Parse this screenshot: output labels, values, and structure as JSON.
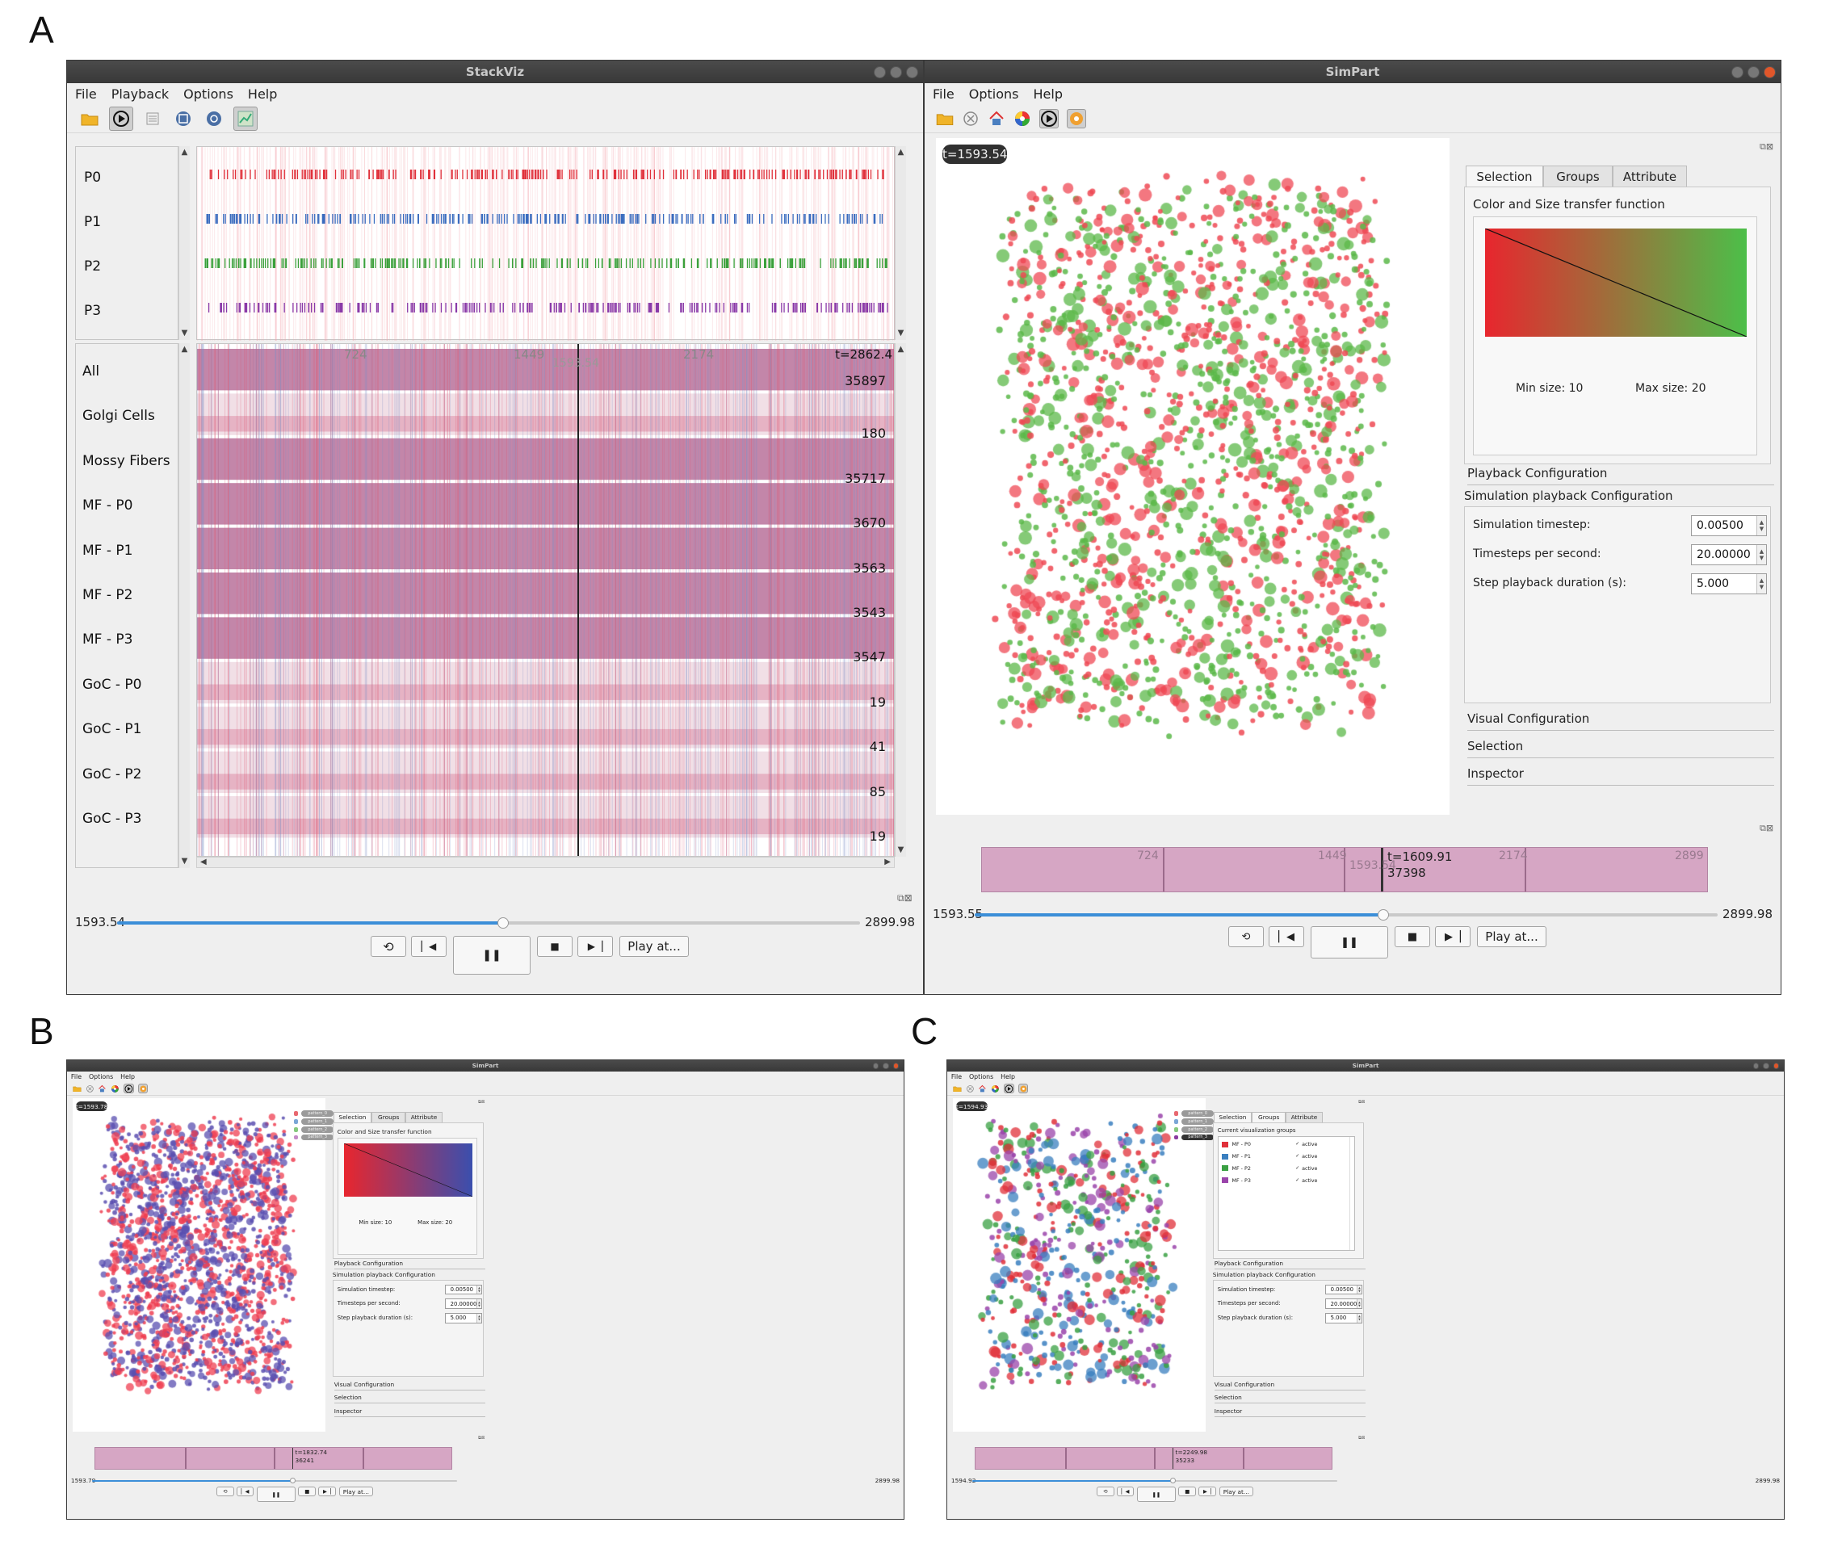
{
  "panels": {
    "A": "A",
    "B": "B",
    "C": "C"
  },
  "stackviz": {
    "title": "StackViz",
    "menu": [
      "File",
      "Playback",
      "Options",
      "Help"
    ],
    "toolbar_icons": [
      "open-folder-icon",
      "play-icon",
      "list-icon",
      "zoom-fit-icon",
      "zoom-reset-icon",
      "chart-icon"
    ],
    "raster_rows": [
      {
        "label": "P0",
        "color": "#e0303a"
      },
      {
        "label": "P1",
        "color": "#3a6cbf"
      },
      {
        "label": "P2",
        "color": "#3aa03a"
      },
      {
        "label": "P3",
        "color": "#8a3aa8"
      }
    ],
    "stack_rows": [
      {
        "label": "All",
        "count": "35897"
      },
      {
        "label": "Golgi Cells",
        "count": "180"
      },
      {
        "label": "Mossy Fibers",
        "count": "35717"
      },
      {
        "label": "MF - P0",
        "count": "3670"
      },
      {
        "label": "MF - P1",
        "count": "3563"
      },
      {
        "label": "MF - P2",
        "count": "3543"
      },
      {
        "label": "MF - P3",
        "count": "3547"
      },
      {
        "label": "GoC - P0",
        "count": "19"
      },
      {
        "label": "GoC - P1",
        "count": "41"
      },
      {
        "label": "GoC - P2",
        "count": "85"
      },
      {
        "label": "GoC - P3",
        "count": "19"
      }
    ],
    "stack_header": {
      "t": "t=2862.4",
      "ticks": [
        "724",
        "1449",
        "1593.54",
        "2174"
      ]
    },
    "slider": {
      "min_label": "1593.54",
      "max_label": "2899.98",
      "fraction": 0.52
    },
    "buttons": {
      "restart": "restart-icon",
      "prev": "step-back-icon",
      "pause": "pause-icon",
      "stop": "stop-icon",
      "next": "step-forward-icon",
      "play_at": "Play at..."
    }
  },
  "simpartA": {
    "title": "SimPart",
    "menu": [
      "File",
      "Options",
      "Help"
    ],
    "time": "t=1593.54",
    "tabs": [
      "Selection",
      "Groups",
      "Attribute"
    ],
    "transfer_title": "Color and Size transfer function",
    "min_size": "Min size: 10",
    "max_size": "Max size: 20",
    "gradient": [
      "#e8262e",
      "#4cbf49"
    ],
    "playback_config": "Playback Configuration",
    "sim_playback_config": "Simulation playback Configuration",
    "fields": [
      {
        "label": "Simulation timestep:",
        "value": "0.00500"
      },
      {
        "label": "Timesteps per second:",
        "value": "20.00000"
      },
      {
        "label": "Step playback duration (s):",
        "value": "5.000"
      }
    ],
    "sections": [
      "Visual Configuration",
      "Selection",
      "Inspector"
    ],
    "timeline": {
      "ticks": [
        "724",
        "1449",
        "1593.54",
        "2174",
        "2899"
      ],
      "t": "t=1609.91",
      "count": "37398"
    },
    "slider": {
      "min_label": "1593.55",
      "max_label": "2899.98",
      "fraction": 0.55
    },
    "play_at": "Play at...",
    "particle_colors": [
      "#ef4a55",
      "#5cb84a"
    ]
  },
  "simpartB": {
    "title": "SimPart",
    "menu": [
      "File",
      "Options",
      "Help"
    ],
    "time": "t=1593.78",
    "tabs": [
      "Selection",
      "Groups",
      "Attribute"
    ],
    "transfer_title": "Color and Size transfer function",
    "min_size": "Min size: 10",
    "max_size": "Max size: 20",
    "gradient": [
      "#e8262e",
      "#3a4fae"
    ],
    "legend": [
      {
        "label": "pattern_0",
        "color": "#e86870"
      },
      {
        "label": "pattern_1",
        "color": "#7aa6d6"
      },
      {
        "label": "pattern_2",
        "color": "#86c97e"
      },
      {
        "label": "pattern_3",
        "color": "#c48ac8"
      }
    ],
    "playback_config": "Playback Configuration",
    "sim_playback_config": "Simulation playback Configuration",
    "fields": [
      {
        "label": "Simulation timestep:",
        "value": "0.00500"
      },
      {
        "label": "Timesteps per second:",
        "value": "20.00000"
      },
      {
        "label": "Step playback duration (s):",
        "value": "5.000"
      }
    ],
    "sections": [
      "Visual Configuration",
      "Selection",
      "Inspector"
    ],
    "timeline": {
      "t": "t=1832.74",
      "count": "36241"
    },
    "slider": {
      "min_label": "1593.79",
      "max_label": "2899.98",
      "fraction": 0.55
    },
    "play_at": "Play at...",
    "particle_colors": [
      "#ef3f52",
      "#5a4fb0"
    ]
  },
  "simpartC": {
    "title": "SimPart",
    "menu": [
      "File",
      "Options",
      "Help"
    ],
    "time": "t=1594.93",
    "tabs": [
      "Selection",
      "Groups",
      "Attribute"
    ],
    "groups_title": "Current visualization groups",
    "groups": [
      {
        "label": "MF - P0",
        "color": "#e0303a",
        "state": "active"
      },
      {
        "label": "MF - P1",
        "color": "#3a7fbf",
        "state": "active"
      },
      {
        "label": "MF - P2",
        "color": "#3aa043",
        "state": "active"
      },
      {
        "label": "MF - P3",
        "color": "#9a44aa",
        "state": "active"
      }
    ],
    "legend": [
      {
        "label": "pattern_0",
        "color": "#e86870"
      },
      {
        "label": "pattern_1",
        "color": "#7aa6d6"
      },
      {
        "label": "pattern_2",
        "color": "#86c97e"
      },
      {
        "label": "pattern_3",
        "color": "#8a3aa0"
      }
    ],
    "playback_config": "Playback Configuration",
    "sim_playback_config": "Simulation playback Configuration",
    "fields": [
      {
        "label": "Simulation timestep:",
        "value": "0.00500"
      },
      {
        "label": "Timesteps per second:",
        "value": "20.00000"
      },
      {
        "label": "Step playback duration (s):",
        "value": "5.000"
      }
    ],
    "sections": [
      "Visual Configuration",
      "Selection",
      "Inspector"
    ],
    "timeline": {
      "t": "t=2249.98",
      "count": "35233"
    },
    "slider": {
      "min_label": "1594.92",
      "max_label": "2899.98",
      "fraction": 0.55
    },
    "play_at": "Play at...",
    "particle_colors": [
      "#e0303a",
      "#3a7fbf",
      "#3aa043",
      "#9a44aa"
    ]
  }
}
